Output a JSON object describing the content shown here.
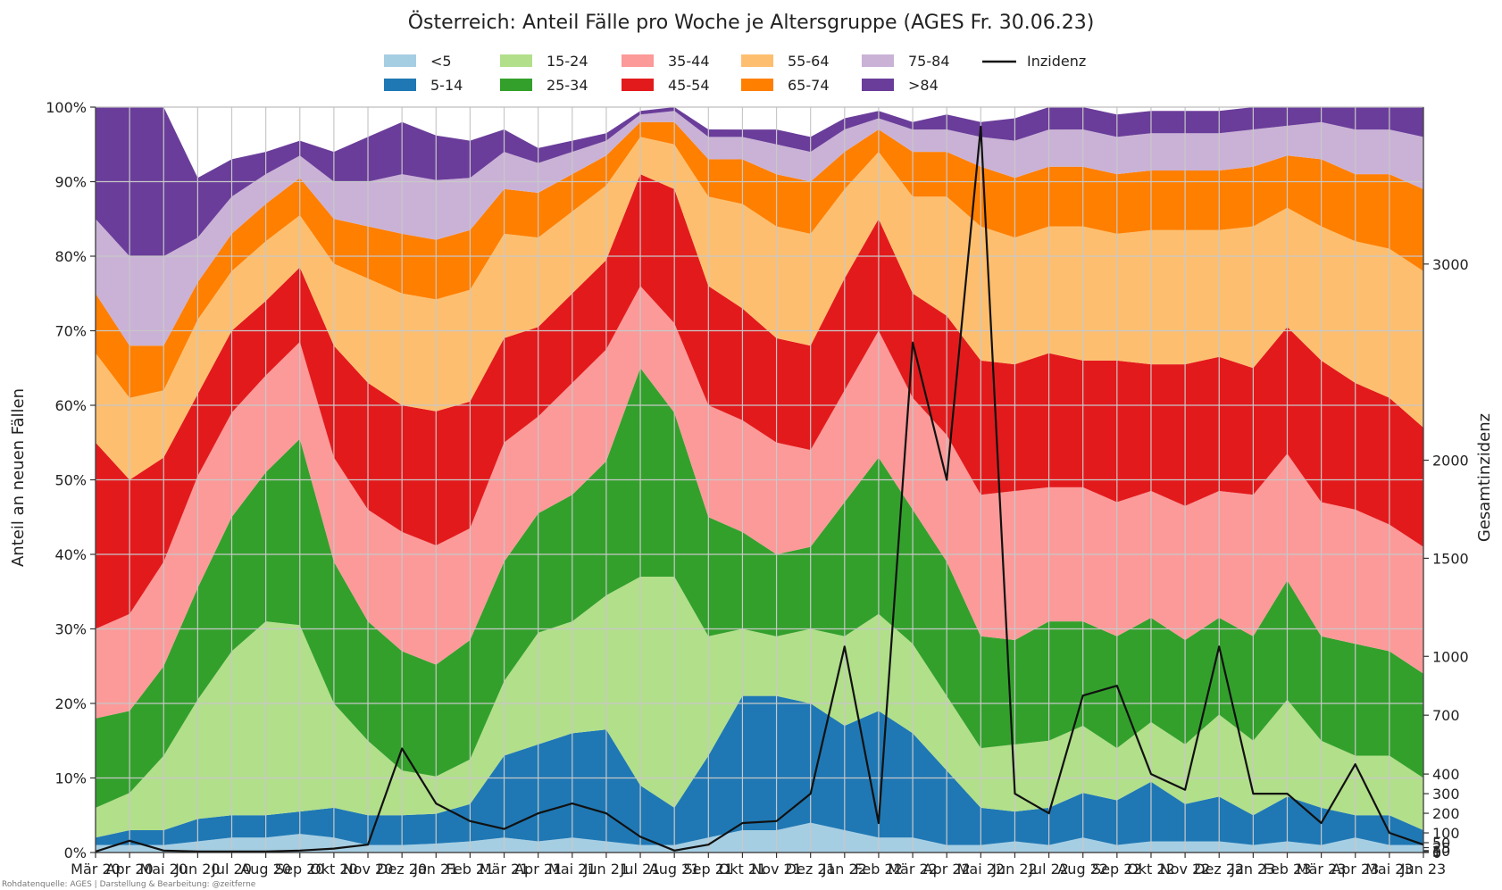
{
  "chart_data": {
    "type": "area",
    "stacked": true,
    "normalized": true,
    "title": "Österreich: Anteil Fälle pro Woche je Altersgruppe (AGES Fr. 30.06.23)",
    "ylabel": "Anteil an neuen Fällen",
    "y2label": "Gesamtinzidenz",
    "ylim": [
      0,
      1
    ],
    "y2_ticks": [
      "0",
      "5",
      "10",
      "25",
      "50",
      "100",
      "200",
      "300",
      "400",
      "700",
      "1000",
      "1500",
      "2000",
      "3000"
    ],
    "y_ticks": [
      "0%",
      "10%",
      "20%",
      "30%",
      "40%",
      "50%",
      "60%",
      "70%",
      "80%",
      "90%",
      "100%"
    ],
    "grid": true,
    "legend_position": "top-center",
    "source_note": "Rohdatenquelle: AGES | Darstellung & Bearbeitung: @zeitferne",
    "x": [
      "Mär 20",
      "Apr 20",
      "Mai 20",
      "Jun 20",
      "Jul 20",
      "Aug 20",
      "Sep 20",
      "Okt 20",
      "Nov 20",
      "Dez 20",
      "Jan 21",
      "Feb 21",
      "Mär 21",
      "Apr 21",
      "Mai 21",
      "Jun 21",
      "Jul 21",
      "Aug 21",
      "Sep 21",
      "Okt 21",
      "Nov 21",
      "Dez 21",
      "Jan 22",
      "Feb 22",
      "Mär 22",
      "Apr 22",
      "Mai 22",
      "Jun 22",
      "Jul 22",
      "Aug 22",
      "Sep 22",
      "Okt 22",
      "Nov 22",
      "Dez 22",
      "Jan 23",
      "Feb 23",
      "Mär 23",
      "Apr 23",
      "Mai 23",
      "Jun 23"
    ],
    "series": [
      {
        "name": "<5",
        "color": "#a6cee3",
        "values": [
          0.01,
          0.01,
          0.01,
          0.015,
          0.02,
          0.02,
          0.025,
          0.02,
          0.01,
          0.01,
          0.012,
          0.015,
          0.02,
          0.015,
          0.02,
          0.015,
          0.01,
          0.01,
          0.02,
          0.03,
          0.03,
          0.04,
          0.03,
          0.02,
          0.02,
          0.01,
          0.01,
          0.015,
          0.01,
          0.02,
          0.01,
          0.015,
          0.015,
          0.015,
          0.01,
          0.015,
          0.01,
          0.02,
          0.01,
          0.01
        ]
      },
      {
        "name": "5-14",
        "color": "#1f78b4",
        "values": [
          0.01,
          0.02,
          0.02,
          0.03,
          0.03,
          0.03,
          0.03,
          0.04,
          0.04,
          0.04,
          0.04,
          0.05,
          0.11,
          0.13,
          0.14,
          0.15,
          0.08,
          0.05,
          0.11,
          0.18,
          0.18,
          0.16,
          0.14,
          0.17,
          0.14,
          0.1,
          0.05,
          0.04,
          0.05,
          0.06,
          0.06,
          0.08,
          0.05,
          0.06,
          0.04,
          0.06,
          0.05,
          0.03,
          0.04,
          0.02
        ]
      },
      {
        "name": "15-24",
        "color": "#b2df8a",
        "values": [
          0.04,
          0.05,
          0.1,
          0.16,
          0.22,
          0.26,
          0.25,
          0.14,
          0.1,
          0.06,
          0.05,
          0.06,
          0.1,
          0.15,
          0.15,
          0.18,
          0.28,
          0.31,
          0.16,
          0.09,
          0.08,
          0.1,
          0.12,
          0.13,
          0.12,
          0.1,
          0.08,
          0.09,
          0.09,
          0.09,
          0.07,
          0.08,
          0.08,
          0.11,
          0.1,
          0.13,
          0.09,
          0.08,
          0.08,
          0.07
        ]
      },
      {
        "name": "25-34",
        "color": "#33a02c",
        "values": [
          0.12,
          0.11,
          0.12,
          0.15,
          0.18,
          0.2,
          0.25,
          0.19,
          0.16,
          0.16,
          0.15,
          0.16,
          0.16,
          0.16,
          0.17,
          0.18,
          0.28,
          0.22,
          0.16,
          0.13,
          0.11,
          0.11,
          0.18,
          0.21,
          0.18,
          0.18,
          0.15,
          0.14,
          0.16,
          0.14,
          0.15,
          0.14,
          0.14,
          0.13,
          0.14,
          0.16,
          0.14,
          0.15,
          0.14,
          0.14
        ]
      },
      {
        "name": "35-44",
        "color": "#fb9a99",
        "values": [
          0.12,
          0.13,
          0.14,
          0.15,
          0.14,
          0.13,
          0.13,
          0.14,
          0.15,
          0.16,
          0.16,
          0.15,
          0.16,
          0.13,
          0.15,
          0.15,
          0.11,
          0.12,
          0.15,
          0.15,
          0.15,
          0.13,
          0.15,
          0.17,
          0.15,
          0.17,
          0.19,
          0.2,
          0.18,
          0.18,
          0.18,
          0.17,
          0.18,
          0.17,
          0.19,
          0.17,
          0.18,
          0.18,
          0.17,
          0.17
        ]
      },
      {
        "name": "45-54",
        "color": "#e31a1c",
        "values": [
          0.25,
          0.18,
          0.14,
          0.11,
          0.11,
          0.1,
          0.1,
          0.15,
          0.17,
          0.17,
          0.18,
          0.17,
          0.14,
          0.12,
          0.12,
          0.12,
          0.15,
          0.18,
          0.16,
          0.15,
          0.14,
          0.14,
          0.15,
          0.15,
          0.14,
          0.16,
          0.18,
          0.17,
          0.18,
          0.17,
          0.19,
          0.17,
          0.19,
          0.18,
          0.17,
          0.17,
          0.19,
          0.17,
          0.17,
          0.16
        ]
      },
      {
        "name": "55-64",
        "color": "#fdbf6f",
        "values": [
          0.12,
          0.11,
          0.09,
          0.1,
          0.08,
          0.08,
          0.07,
          0.11,
          0.14,
          0.15,
          0.15,
          0.15,
          0.14,
          0.12,
          0.11,
          0.1,
          0.05,
          0.06,
          0.12,
          0.14,
          0.15,
          0.15,
          0.12,
          0.09,
          0.13,
          0.16,
          0.18,
          0.17,
          0.17,
          0.18,
          0.17,
          0.18,
          0.18,
          0.17,
          0.19,
          0.16,
          0.18,
          0.19,
          0.2,
          0.21
        ]
      },
      {
        "name": "65-74",
        "color": "#ff7f00",
        "values": [
          0.08,
          0.07,
          0.06,
          0.05,
          0.05,
          0.05,
          0.05,
          0.06,
          0.07,
          0.08,
          0.08,
          0.08,
          0.06,
          0.06,
          0.05,
          0.04,
          0.02,
          0.03,
          0.05,
          0.06,
          0.07,
          0.07,
          0.05,
          0.03,
          0.06,
          0.06,
          0.08,
          0.08,
          0.08,
          0.08,
          0.08,
          0.08,
          0.08,
          0.08,
          0.08,
          0.07,
          0.09,
          0.09,
          0.1,
          0.11
        ]
      },
      {
        "name": "75-84",
        "color": "#cab2d6",
        "values": [
          0.1,
          0.12,
          0.12,
          0.06,
          0.05,
          0.04,
          0.03,
          0.05,
          0.06,
          0.08,
          0.08,
          0.07,
          0.05,
          0.04,
          0.03,
          0.02,
          0.01,
          0.015,
          0.03,
          0.03,
          0.04,
          0.04,
          0.03,
          0.015,
          0.03,
          0.03,
          0.04,
          0.05,
          0.05,
          0.05,
          0.05,
          0.05,
          0.05,
          0.05,
          0.05,
          0.04,
          0.05,
          0.06,
          0.06,
          0.07
        ]
      },
      {
        "name": ">84",
        "color": "#6a3d9a",
        "values": [
          0.15,
          0.2,
          0.2,
          0.08,
          0.05,
          0.03,
          0.02,
          0.04,
          0.06,
          0.07,
          0.06,
          0.05,
          0.03,
          0.02,
          0.015,
          0.01,
          0.005,
          0.005,
          0.01,
          0.01,
          0.02,
          0.02,
          0.015,
          0.01,
          0.01,
          0.02,
          0.02,
          0.03,
          0.03,
          0.03,
          0.03,
          0.03,
          0.03,
          0.03,
          0.03,
          0.03,
          0.03,
          0.04,
          0.05,
          0.06
        ]
      }
    ],
    "incidence": {
      "name": "Inzidenz",
      "color": "#111111",
      "values": [
        5,
        60,
        10,
        5,
        5,
        5,
        10,
        20,
        40,
        530,
        250,
        160,
        120,
        200,
        250,
        200,
        80,
        10,
        40,
        150,
        160,
        300,
        1050,
        150,
        2600,
        1900,
        3700,
        300,
        200,
        800,
        850,
        400,
        320,
        1050,
        300,
        300,
        150,
        450,
        100,
        40
      ]
    }
  }
}
